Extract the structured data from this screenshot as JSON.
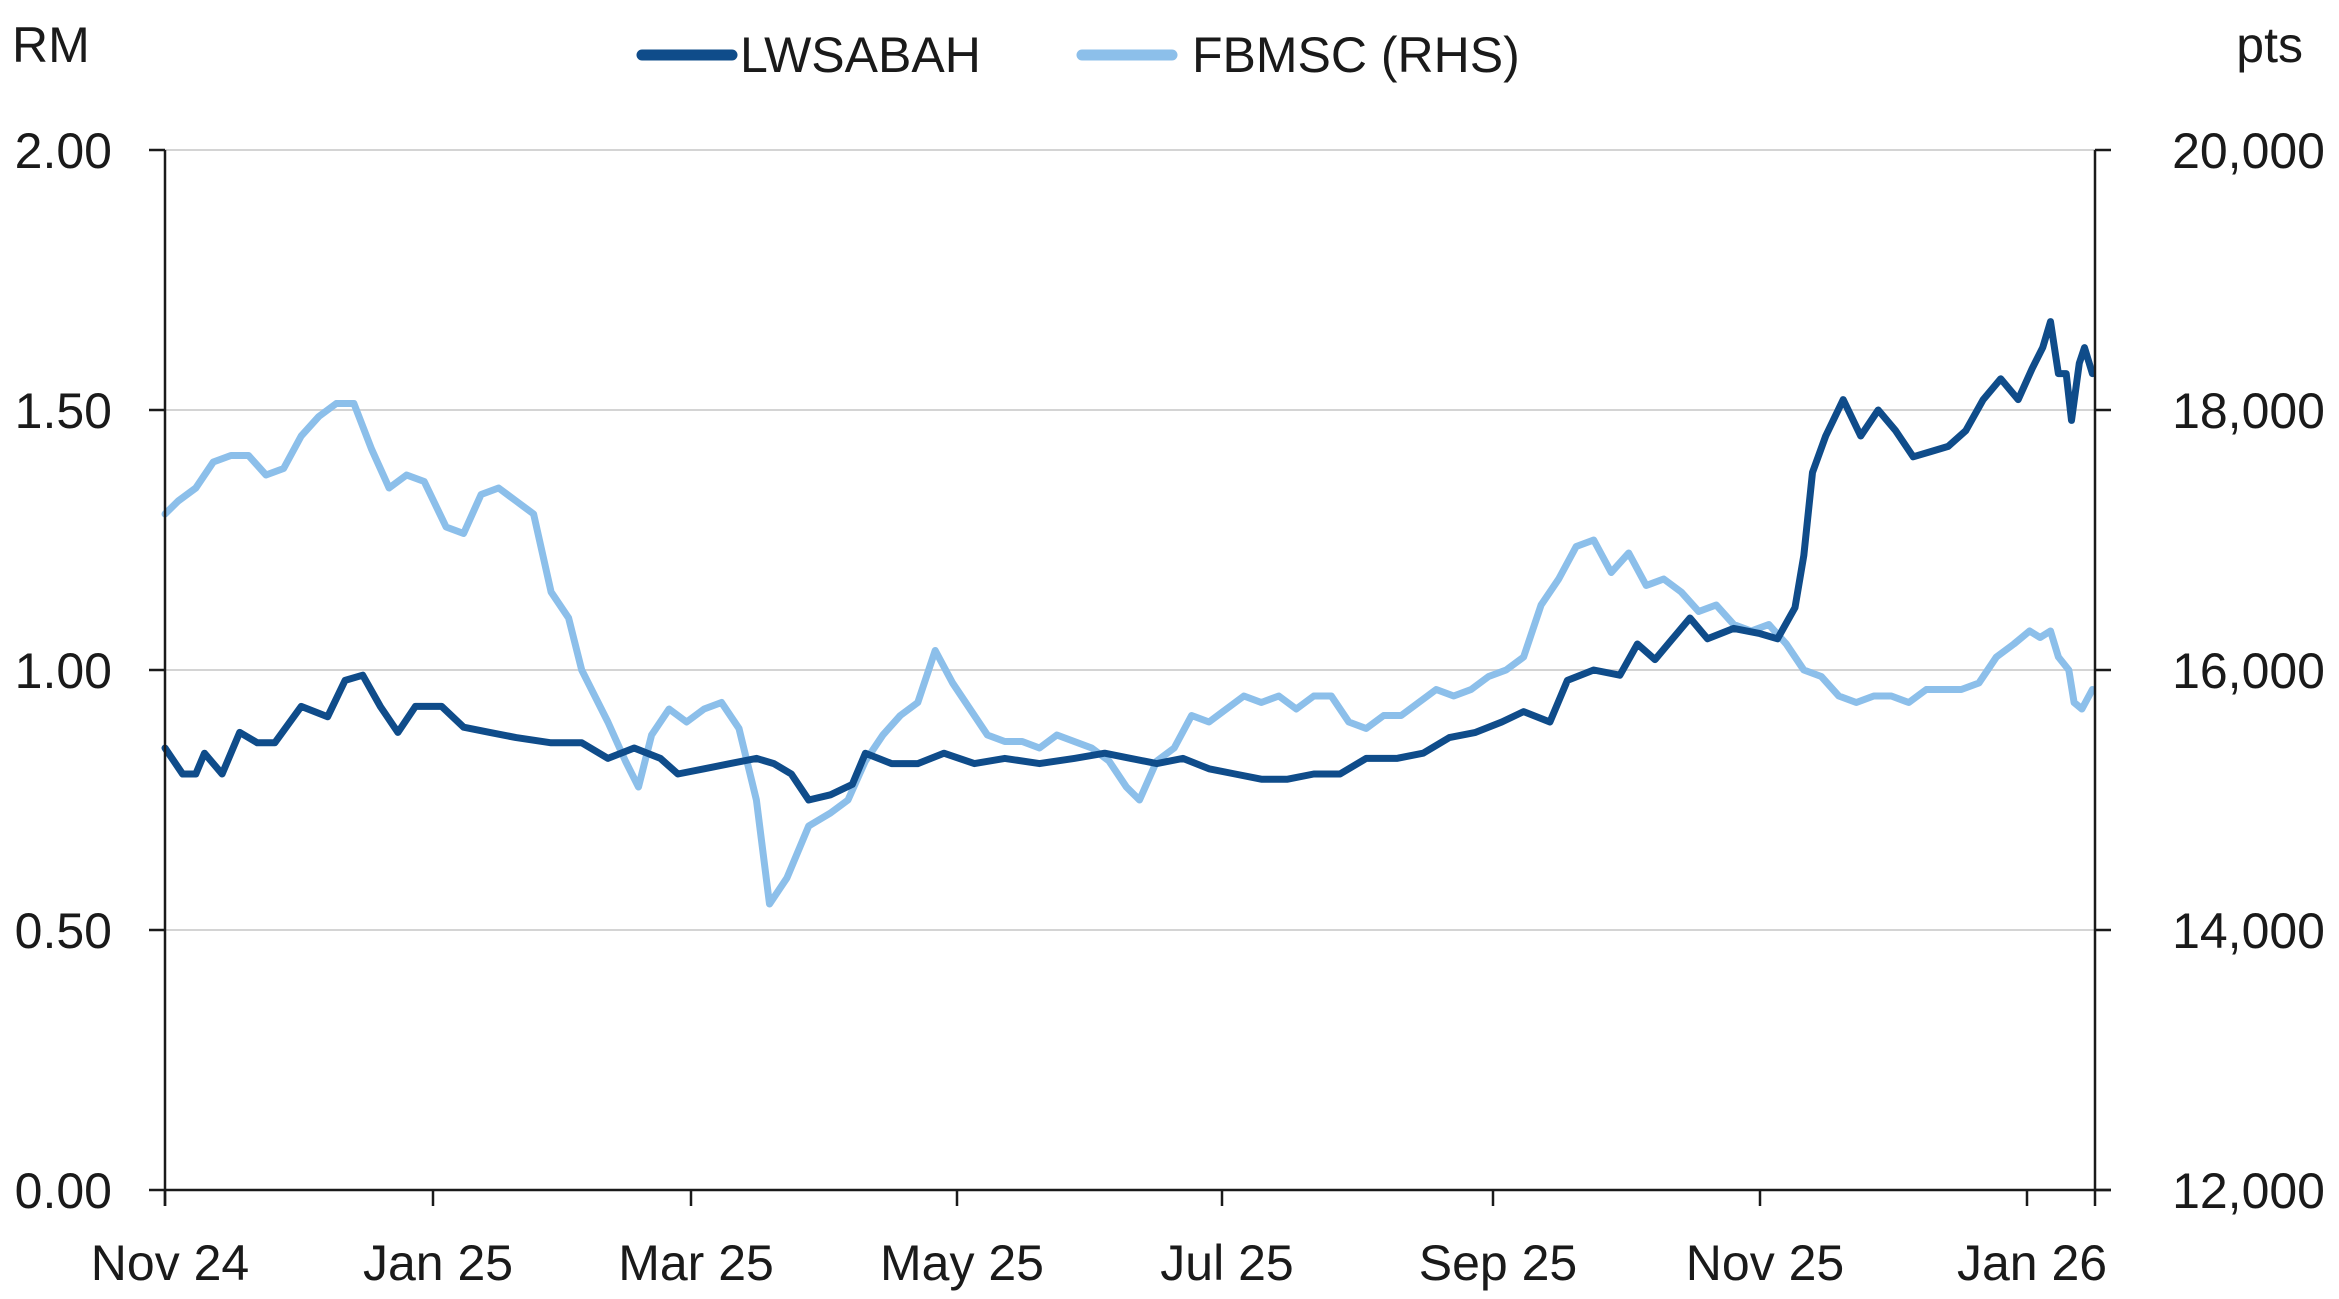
{
  "chart_data": {
    "type": "line",
    "title": "",
    "left_axis": {
      "unit": "RM",
      "ylim": [
        0,
        2
      ],
      "ticks": [
        "0.00",
        "0.50",
        "1.00",
        "1.50",
        "2.00"
      ]
    },
    "right_axis": {
      "unit": "pts",
      "ylim": [
        12000,
        20000
      ],
      "ticks": [
        "12,000",
        "14,000",
        "16,000",
        "18,000",
        "20,000"
      ]
    },
    "x_axis": {
      "ticks": [
        "Nov 24",
        "Jan 25",
        "Mar 25",
        "May 25",
        "Jul 25",
        "Sep 25",
        "Nov 25",
        "Jan 26"
      ]
    },
    "grid": "horizontal",
    "legend_position": "top-center",
    "series": [
      {
        "name": "LWSABAH",
        "axis": "left",
        "color": "#0f4c8a",
        "points": [
          [
            "2024-11-01",
            0.85
          ],
          [
            "2024-11-05",
            0.8
          ],
          [
            "2024-11-08",
            0.8
          ],
          [
            "2024-11-10",
            0.84
          ],
          [
            "2024-11-14",
            0.8
          ],
          [
            "2024-11-18",
            0.88
          ],
          [
            "2024-11-22",
            0.86
          ],
          [
            "2024-11-26",
            0.86
          ],
          [
            "2024-12-02",
            0.93
          ],
          [
            "2024-12-08",
            0.91
          ],
          [
            "2024-12-12",
            0.98
          ],
          [
            "2024-12-16",
            0.99
          ],
          [
            "2024-12-20",
            0.93
          ],
          [
            "2024-12-24",
            0.88
          ],
          [
            "2024-12-28",
            0.93
          ],
          [
            "2025-01-03",
            0.93
          ],
          [
            "2025-01-08",
            0.89
          ],
          [
            "2025-01-14",
            0.88
          ],
          [
            "2025-01-20",
            0.87
          ],
          [
            "2025-01-28",
            0.86
          ],
          [
            "2025-02-04",
            0.86
          ],
          [
            "2025-02-10",
            0.83
          ],
          [
            "2025-02-16",
            0.85
          ],
          [
            "2025-02-22",
            0.83
          ],
          [
            "2025-02-26",
            0.8
          ],
          [
            "2025-03-04",
            0.81
          ],
          [
            "2025-03-10",
            0.82
          ],
          [
            "2025-03-16",
            0.83
          ],
          [
            "2025-03-20",
            0.82
          ],
          [
            "2025-03-24",
            0.8
          ],
          [
            "2025-03-28",
            0.75
          ],
          [
            "2025-04-02",
            0.76
          ],
          [
            "2025-04-07",
            0.78
          ],
          [
            "2025-04-10",
            0.84
          ],
          [
            "2025-04-16",
            0.82
          ],
          [
            "2025-04-22",
            0.82
          ],
          [
            "2025-04-28",
            0.84
          ],
          [
            "2025-05-05",
            0.82
          ],
          [
            "2025-05-12",
            0.83
          ],
          [
            "2025-05-20",
            0.82
          ],
          [
            "2025-05-28",
            0.83
          ],
          [
            "2025-06-04",
            0.84
          ],
          [
            "2025-06-10",
            0.83
          ],
          [
            "2025-06-16",
            0.82
          ],
          [
            "2025-06-22",
            0.83
          ],
          [
            "2025-06-28",
            0.81
          ],
          [
            "2025-07-04",
            0.8
          ],
          [
            "2025-07-10",
            0.79
          ],
          [
            "2025-07-16",
            0.79
          ],
          [
            "2025-07-22",
            0.8
          ],
          [
            "2025-07-28",
            0.8
          ],
          [
            "2025-08-03",
            0.83
          ],
          [
            "2025-08-10",
            0.83
          ],
          [
            "2025-08-16",
            0.84
          ],
          [
            "2025-08-22",
            0.87
          ],
          [
            "2025-08-28",
            0.88
          ],
          [
            "2025-09-03",
            0.9
          ],
          [
            "2025-09-08",
            0.92
          ],
          [
            "2025-09-14",
            0.9
          ],
          [
            "2025-09-18",
            0.98
          ],
          [
            "2025-09-24",
            1.0
          ],
          [
            "2025-09-30",
            0.99
          ],
          [
            "2025-10-04",
            1.05
          ],
          [
            "2025-10-08",
            1.02
          ],
          [
            "2025-10-12",
            1.06
          ],
          [
            "2025-10-16",
            1.1
          ],
          [
            "2025-10-20",
            1.06
          ],
          [
            "2025-10-26",
            1.08
          ],
          [
            "2025-11-01",
            1.07
          ],
          [
            "2025-11-05",
            1.06
          ],
          [
            "2025-11-09",
            1.12
          ],
          [
            "2025-11-11",
            1.22
          ],
          [
            "2025-11-13",
            1.38
          ],
          [
            "2025-11-16",
            1.45
          ],
          [
            "2025-11-20",
            1.52
          ],
          [
            "2025-11-24",
            1.45
          ],
          [
            "2025-11-28",
            1.5
          ],
          [
            "2025-12-02",
            1.46
          ],
          [
            "2025-12-06",
            1.41
          ],
          [
            "2025-12-10",
            1.42
          ],
          [
            "2025-12-14",
            1.43
          ],
          [
            "2025-12-18",
            1.46
          ],
          [
            "2025-12-22",
            1.52
          ],
          [
            "2025-12-26",
            1.56
          ],
          [
            "2025-12-30",
            1.52
          ],
          [
            "2026-01-03",
            1.58
          ],
          [
            "2026-01-07",
            1.62
          ],
          [
            "2026-01-10",
            1.67
          ],
          [
            "2026-01-13",
            1.57
          ],
          [
            "2026-01-16",
            1.57
          ],
          [
            "2026-01-18",
            1.48
          ],
          [
            "2026-01-21",
            1.59
          ],
          [
            "2026-01-23",
            1.62
          ],
          [
            "2026-01-26",
            1.57
          ]
        ]
      },
      {
        "name": "FBMSC (RHS)",
        "axis": "right",
        "color": "#8cbfea",
        "points": [
          [
            "2024-11-01",
            17200
          ],
          [
            "2024-11-04",
            17300
          ],
          [
            "2024-11-08",
            17400
          ],
          [
            "2024-11-12",
            17600
          ],
          [
            "2024-11-16",
            17650
          ],
          [
            "2024-11-20",
            17650
          ],
          [
            "2024-11-24",
            17500
          ],
          [
            "2024-11-28",
            17550
          ],
          [
            "2024-12-02",
            17800
          ],
          [
            "2024-12-06",
            17950
          ],
          [
            "2024-12-10",
            18050
          ],
          [
            "2024-12-14",
            18050
          ],
          [
            "2024-12-18",
            17700
          ],
          [
            "2024-12-22",
            17400
          ],
          [
            "2024-12-26",
            17500
          ],
          [
            "2024-12-30",
            17450
          ],
          [
            "2025-01-04",
            17100
          ],
          [
            "2025-01-08",
            17050
          ],
          [
            "2025-01-12",
            17350
          ],
          [
            "2025-01-16",
            17400
          ],
          [
            "2025-01-20",
            17300
          ],
          [
            "2025-01-24",
            17200
          ],
          [
            "2025-01-28",
            16600
          ],
          [
            "2025-02-01",
            16400
          ],
          [
            "2025-02-04",
            16000
          ],
          [
            "2025-02-07",
            15800
          ],
          [
            "2025-02-10",
            15600
          ],
          [
            "2025-02-14",
            15300
          ],
          [
            "2025-02-17",
            15100
          ],
          [
            "2025-02-20",
            15500
          ],
          [
            "2025-02-24",
            15700
          ],
          [
            "2025-02-28",
            15600
          ],
          [
            "2025-03-04",
            15700
          ],
          [
            "2025-03-08",
            15750
          ],
          [
            "2025-03-12",
            15550
          ],
          [
            "2025-03-16",
            15000
          ],
          [
            "2025-03-19",
            14200
          ],
          [
            "2025-03-23",
            14400
          ],
          [
            "2025-03-28",
            14800
          ],
          [
            "2025-04-02",
            14900
          ],
          [
            "2025-04-06",
            15000
          ],
          [
            "2025-04-10",
            15300
          ],
          [
            "2025-04-14",
            15500
          ],
          [
            "2025-04-18",
            15650
          ],
          [
            "2025-04-22",
            15750
          ],
          [
            "2025-04-26",
            16150
          ],
          [
            "2025-04-30",
            15900
          ],
          [
            "2025-05-04",
            15700
          ],
          [
            "2025-05-08",
            15500
          ],
          [
            "2025-05-12",
            15450
          ],
          [
            "2025-05-16",
            15450
          ],
          [
            "2025-05-20",
            15400
          ],
          [
            "2025-05-24",
            15500
          ],
          [
            "2025-05-28",
            15450
          ],
          [
            "2025-06-01",
            15400
          ],
          [
            "2025-06-05",
            15300
          ],
          [
            "2025-06-09",
            15100
          ],
          [
            "2025-06-12",
            15000
          ],
          [
            "2025-06-16",
            15300
          ],
          [
            "2025-06-20",
            15400
          ],
          [
            "2025-06-24",
            15650
          ],
          [
            "2025-06-28",
            15600
          ],
          [
            "2025-07-02",
            15700
          ],
          [
            "2025-07-06",
            15800
          ],
          [
            "2025-07-10",
            15750
          ],
          [
            "2025-07-14",
            15800
          ],
          [
            "2025-07-18",
            15700
          ],
          [
            "2025-07-22",
            15800
          ],
          [
            "2025-07-26",
            15800
          ],
          [
            "2025-07-30",
            15600
          ],
          [
            "2025-08-03",
            15550
          ],
          [
            "2025-08-07",
            15650
          ],
          [
            "2025-08-11",
            15650
          ],
          [
            "2025-08-15",
            15750
          ],
          [
            "2025-08-19",
            15850
          ],
          [
            "2025-08-23",
            15800
          ],
          [
            "2025-08-27",
            15850
          ],
          [
            "2025-08-31",
            15950
          ],
          [
            "2025-09-04",
            16000
          ],
          [
            "2025-09-08",
            16100
          ],
          [
            "2025-09-12",
            16500
          ],
          [
            "2025-09-16",
            16700
          ],
          [
            "2025-09-20",
            16950
          ],
          [
            "2025-09-24",
            17000
          ],
          [
            "2025-09-28",
            16750
          ],
          [
            "2025-10-02",
            16900
          ],
          [
            "2025-10-06",
            16650
          ],
          [
            "2025-10-10",
            16700
          ],
          [
            "2025-10-14",
            16600
          ],
          [
            "2025-10-18",
            16450
          ],
          [
            "2025-10-22",
            16500
          ],
          [
            "2025-10-26",
            16350
          ],
          [
            "2025-10-30",
            16300
          ],
          [
            "2025-11-03",
            16350
          ],
          [
            "2025-11-07",
            16200
          ],
          [
            "2025-11-11",
            16000
          ],
          [
            "2025-11-15",
            15950
          ],
          [
            "2025-11-19",
            15800
          ],
          [
            "2025-11-23",
            15750
          ],
          [
            "2025-11-27",
            15800
          ],
          [
            "2025-12-01",
            15800
          ],
          [
            "2025-12-05",
            15750
          ],
          [
            "2025-12-09",
            15850
          ],
          [
            "2025-12-13",
            15850
          ],
          [
            "2025-12-17",
            15850
          ],
          [
            "2025-12-21",
            15900
          ],
          [
            "2025-12-25",
            16100
          ],
          [
            "2025-12-29",
            16200
          ],
          [
            "2026-01-02",
            16300
          ],
          [
            "2026-01-06",
            16250
          ],
          [
            "2026-01-10",
            16300
          ],
          [
            "2026-01-13",
            16100
          ],
          [
            "2026-01-17",
            16000
          ],
          [
            "2026-01-19",
            15750
          ],
          [
            "2026-01-22",
            15700
          ],
          [
            "2026-01-26",
            15850
          ]
        ]
      }
    ]
  }
}
